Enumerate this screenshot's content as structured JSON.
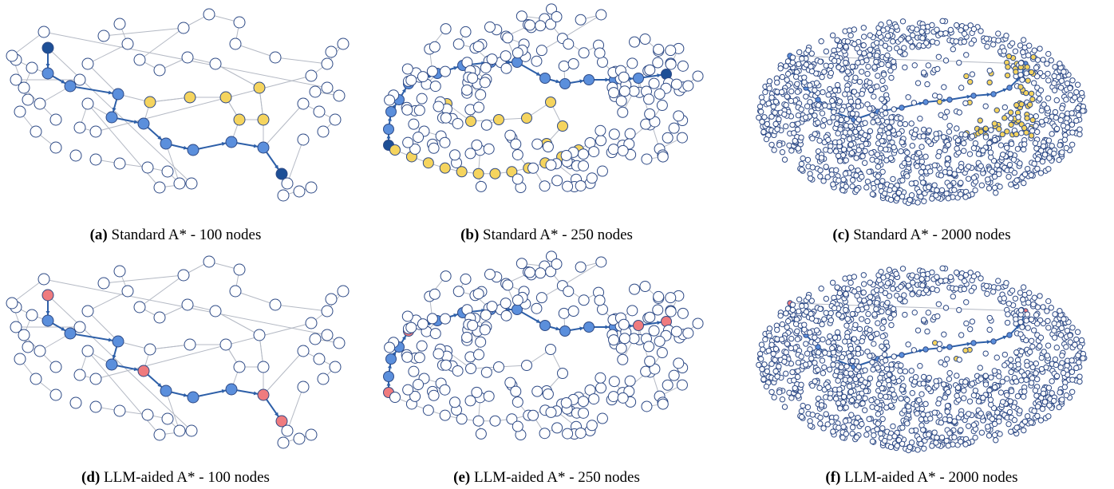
{
  "colors": {
    "unvisited_fill": "#ffffff",
    "node_stroke": "#2e4a86",
    "path_node": "#5b8fdc",
    "explored_node": "#f5d45e",
    "llm_waypoint_node": "#ef7b7e",
    "endpoint_node": "#1d4f96",
    "edge": "#b4b9c4",
    "path_edge": "#2d5fa8"
  },
  "panels": [
    {
      "id": "a",
      "label": "(a)",
      "text": "Standard A* - 100 nodes",
      "size": 100,
      "mode": "standard"
    },
    {
      "id": "b",
      "label": "(b)",
      "text": "Standard A* - 250 nodes",
      "size": 250,
      "mode": "standard"
    },
    {
      "id": "c",
      "label": "(c)",
      "text": "Standard A* - 2000 nodes",
      "size": 2000,
      "mode": "standard"
    },
    {
      "id": "d",
      "label": "(d)",
      "text": "LLM-aided A* - 100 nodes",
      "size": 100,
      "mode": "llm"
    },
    {
      "id": "e",
      "label": "(e)",
      "text": "LLM-aided A* - 250 nodes",
      "size": 250,
      "mode": "llm"
    },
    {
      "id": "f",
      "label": "(f)",
      "text": "LLM-aided A* - 2000 nodes",
      "size": 2000,
      "mode": "llm"
    }
  ]
}
